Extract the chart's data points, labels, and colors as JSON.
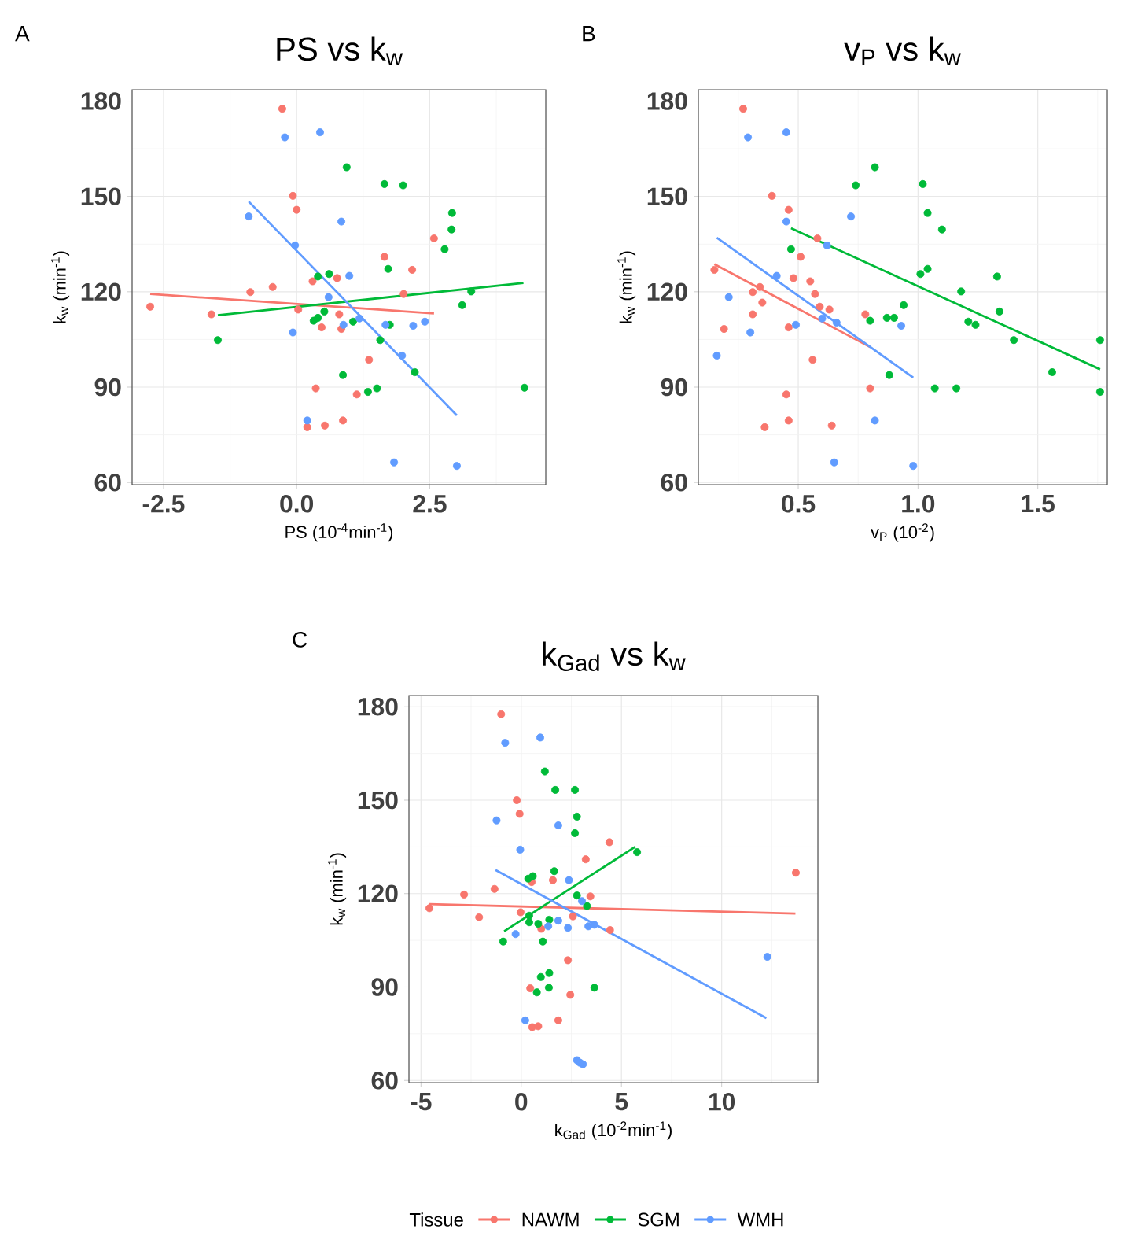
{
  "chart_data": [
    {
      "type": "scatter",
      "title": "PS vs k$_{w}$",
      "xlabel": "PS (10$^{-4}$min$^{-1}$)",
      "ylabel": "k$_{w}$ (min$^{-1}$)",
      "annotations": [
        "A"
      ],
      "xlim": [
        -3.09,
        4.68
      ],
      "ylim": [
        59.3,
        183.6
      ],
      "xticks": [
        {
          "value": -2.5,
          "label": "-2.5"
        },
        {
          "value": 0,
          "label": "0.0"
        },
        {
          "value": 2.5,
          "label": "2.5"
        }
      ],
      "yticks": [
        60,
        90,
        120,
        150,
        180
      ],
      "grid": true,
      "marker": "circle",
      "series": [
        {
          "type": "scatter",
          "color": "#f8766d",
          "x": [
            -0.27,
            -0.07,
            0.0,
            2.58,
            1.65,
            2.17,
            0.76,
            0.3,
            -0.45,
            -0.87,
            2.01,
            -2.75,
            0.03,
            -1.6,
            0.8,
            0.47,
            0.84,
            1.36,
            0.36,
            1.13,
            0.2,
            0.53,
            0.87
          ],
          "values": [
            177.6,
            150.2,
            145.8,
            136.8,
            131.0,
            126.9,
            124.3,
            123.3,
            121.5,
            119.9,
            119.3,
            115.3,
            114.4,
            112.9,
            112.9,
            108.8,
            108.3,
            98.6,
            89.6,
            87.7,
            77.4,
            77.9,
            79.5
          ]
        },
        {
          "type": "scatter",
          "color": "#00ba38",
          "x": [
            0.94,
            1.65,
            2.0,
            2.92,
            2.91,
            2.78,
            1.72,
            0.61,
            0.4,
            3.28,
            3.11,
            0.52,
            0.4,
            0.32,
            1.06,
            1.75,
            -1.48,
            1.57,
            2.22,
            0.87,
            1.51,
            1.34,
            4.28
          ],
          "values": [
            159.2,
            153.9,
            153.5,
            144.8,
            139.6,
            133.4,
            127.2,
            125.6,
            124.8,
            120.1,
            115.8,
            113.8,
            111.8,
            110.9,
            110.6,
            109.6,
            104.8,
            104.8,
            94.7,
            93.8,
            89.6,
            88.5,
            89.8
          ]
        },
        {
          "type": "scatter",
          "color": "#619cff",
          "x": [
            0.44,
            -0.22,
            -0.9,
            0.84,
            -0.03,
            0.99,
            0.6,
            1.18,
            0.88,
            1.67,
            2.19,
            2.41,
            -0.07,
            1.98,
            0.2,
            1.83,
            3.01
          ],
          "values": [
            170.2,
            168.6,
            143.7,
            142.1,
            134.6,
            125.0,
            118.3,
            111.6,
            109.6,
            109.6,
            109.3,
            110.6,
            107.2,
            99.9,
            79.5,
            66.3,
            65.2
          ]
        },
        {
          "type": "line",
          "marker": "none",
          "color": "#f8766d",
          "x": [
            -2.75,
            2.58
          ],
          "values": [
            119.3,
            113.2
          ]
        },
        {
          "type": "line",
          "marker": "none",
          "color": "#00ba38",
          "x": [
            -1.48,
            4.26
          ],
          "values": [
            112.6,
            122.8
          ]
        },
        {
          "type": "line",
          "marker": "none",
          "color": "#619cff",
          "x": [
            -0.9,
            3.01
          ],
          "values": [
            148.4,
            81.1
          ]
        }
      ]
    },
    {
      "type": "scatter",
      "title": "v$_{P}$ vs k$_{w}$",
      "xlabel": "v$_{P}$ (10$^{-2}$)",
      "ylabel": "k$_{w}$ (min$^{-1}$)",
      "annotations": [
        "B"
      ],
      "xlim": [
        0.083,
        1.79
      ],
      "ylim": [
        59.3,
        183.6
      ],
      "xticks": [
        0.5,
        {
          "value": 1.0,
          "label": "1.0"
        },
        1.5
      ],
      "yticks": [
        60,
        90,
        120,
        150,
        180
      ],
      "grid": true,
      "marker": "circle",
      "series": [
        {
          "type": "scatter",
          "color": "#f8766d",
          "x": [
            0.27,
            0.39,
            0.46,
            0.58,
            0.51,
            0.15,
            0.48,
            0.55,
            0.34,
            0.31,
            0.57,
            0.35,
            0.59,
            0.63,
            0.31,
            0.78,
            0.46,
            0.19,
            0.56,
            0.8,
            0.45,
            0.36,
            0.64,
            0.46
          ],
          "values": [
            177.6,
            150.2,
            145.8,
            136.8,
            131.0,
            126.9,
            124.3,
            123.3,
            121.5,
            119.9,
            119.3,
            116.6,
            115.3,
            114.4,
            112.9,
            112.9,
            108.8,
            108.3,
            98.6,
            89.6,
            87.7,
            77.4,
            77.9,
            79.5
          ]
        },
        {
          "type": "scatter",
          "color": "#00ba38",
          "x": [
            0.82,
            0.74,
            1.02,
            1.04,
            1.1,
            0.47,
            1.33,
            1.01,
            1.04,
            1.18,
            0.94,
            1.34,
            0.8,
            0.87,
            0.9,
            1.21,
            1.24,
            1.4,
            1.76,
            1.56,
            0.88,
            1.07,
            1.16,
            1.76
          ],
          "values": [
            159.2,
            153.5,
            153.9,
            144.8,
            139.6,
            133.4,
            124.8,
            125.6,
            127.2,
            120.1,
            115.8,
            113.8,
            110.9,
            111.8,
            111.8,
            110.6,
            109.6,
            104.8,
            104.8,
            94.7,
            93.8,
            89.6,
            89.6,
            88.5
          ]
        },
        {
          "type": "scatter",
          "color": "#619cff",
          "x": [
            0.45,
            0.29,
            0.72,
            0.45,
            0.62,
            0.41,
            0.21,
            0.6,
            0.66,
            0.49,
            0.93,
            0.3,
            0.16,
            0.82,
            0.65,
            0.98
          ],
          "values": [
            170.2,
            168.6,
            143.7,
            142.1,
            134.6,
            125.0,
            118.3,
            111.6,
            110.3,
            109.6,
            109.3,
            107.2,
            99.9,
            79.5,
            66.3,
            65.2
          ]
        },
        {
          "type": "line",
          "color": "#f8766d",
          "marker": "none",
          "x": [
            0.15,
            0.8
          ],
          "values": [
            128.7,
            102.6
          ]
        },
        {
          "type": "line",
          "color": "#00ba38",
          "marker": "none",
          "x": [
            0.47,
            1.76
          ],
          "values": [
            140.0,
            95.6
          ]
        },
        {
          "type": "line",
          "color": "#619cff",
          "marker": "none",
          "x": [
            0.16,
            0.98
          ],
          "values": [
            137.0,
            93.0
          ]
        }
      ]
    },
    {
      "type": "scatter",
      "title": "k$_{Gad}$ vs k$_{w}$",
      "xlabel": "k$_{Gad}$ (10$^{-2}$min$^{-1}$)",
      "ylabel": "k$_{w}$ (min$^{-1}$)",
      "annotations": [
        "C"
      ],
      "xlim": [
        -5.6,
        14.8
      ],
      "ylim": [
        59.3,
        183.6
      ],
      "xticks": [
        -5,
        0,
        5,
        10
      ],
      "yticks": [
        60,
        90,
        120,
        150,
        180
      ],
      "grid": true,
      "marker": "circle",
      "legend": "bottom",
      "legend_title": "Tissue",
      "series": [
        {
          "name": "NAWM",
          "type": "scatter",
          "color": "#f8766d",
          "x": [
            -1.0,
            -0.22,
            -0.08,
            4.4,
            3.22,
            13.7,
            0.52,
            1.58,
            -2.85,
            3.45,
            -1.33,
            -4.58,
            -0.03,
            -2.1,
            2.58,
            4.43,
            1.0,
            2.33,
            0.45,
            2.45,
            0.55,
            0.85,
            1.85
          ],
          "values": [
            177.6,
            150.0,
            145.6,
            136.5,
            131.0,
            126.7,
            123.7,
            124.3,
            119.7,
            119.1,
            121.5,
            115.3,
            114.0,
            112.4,
            112.7,
            108.3,
            108.7,
            98.6,
            89.6,
            87.5,
            77.1,
            77.4,
            79.3
          ]
        },
        {
          "name": "SGM",
          "type": "scatter",
          "color": "#00ba38",
          "x": [
            1.18,
            1.7,
            2.68,
            2.78,
            2.68,
            5.78,
            1.65,
            0.58,
            0.35,
            2.78,
            3.28,
            1.4,
            0.4,
            0.4,
            0.85,
            -0.9,
            1.08,
            1.4,
            0.98,
            1.38,
            0.78,
            3.65
          ],
          "values": [
            159.2,
            153.3,
            153.3,
            144.7,
            139.4,
            133.3,
            127.2,
            125.6,
            124.8,
            119.4,
            116.0,
            111.6,
            112.9,
            110.8,
            110.3,
            104.6,
            104.6,
            94.5,
            93.2,
            89.8,
            88.3,
            89.8
          ]
        },
        {
          "name": "WMH",
          "type": "scatter",
          "color": "#619cff",
          "x": [
            0.95,
            -0.8,
            -1.23,
            1.85,
            -0.05,
            2.38,
            3.03,
            1.85,
            1.35,
            2.33,
            3.35,
            3.65,
            -0.28,
            12.28,
            0.2,
            2.78,
            3.08,
            2.93
          ],
          "values": [
            170.1,
            168.4,
            143.5,
            141.9,
            134.1,
            124.3,
            117.6,
            111.3,
            109.5,
            109.0,
            109.5,
            110.0,
            107.0,
            99.7,
            79.3,
            66.5,
            65.2,
            65.7
          ]
        },
        {
          "type": "line",
          "color": "#f8766d",
          "marker": "none",
          "x": [
            -4.58,
            13.68
          ],
          "values": [
            116.6,
            113.6
          ]
        },
        {
          "type": "line",
          "color": "#00ba38",
          "marker": "none",
          "x": [
            -0.85,
            5.68
          ],
          "values": [
            107.9,
            135.0
          ]
        },
        {
          "type": "line",
          "color": "#619cff",
          "marker": "none",
          "x": [
            -1.28,
            12.23
          ],
          "values": [
            127.6,
            80.0
          ]
        }
      ]
    }
  ]
}
